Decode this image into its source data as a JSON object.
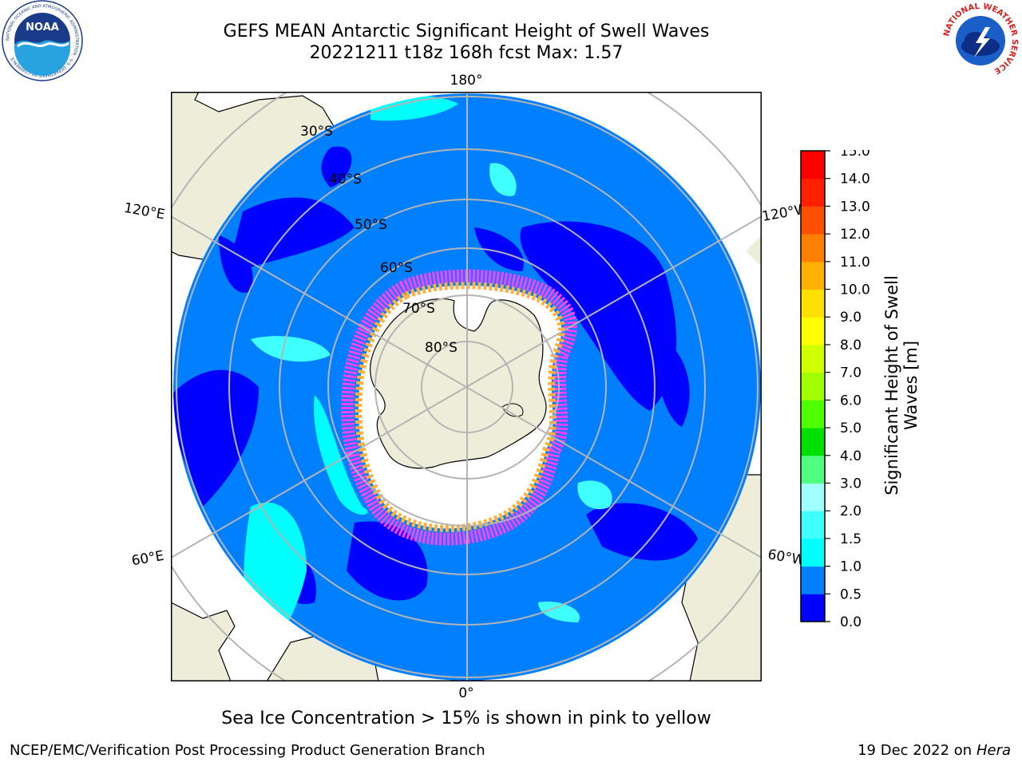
{
  "title": {
    "line1": "GEFS MEAN Antarctic Significant Height of Swell Waves",
    "line2": "20221211 t18z 168h fcst   Max: 1.57"
  },
  "caption": "Sea Ice Concentration > 15% is shown in pink to yellow",
  "footer": {
    "left": "NCEP/EMC/Verification Post Processing Product Generation Branch",
    "right_date": "19 Dec 2022 on",
    "right_host": "Hera"
  },
  "logos": {
    "noaa_text": "NOAA",
    "noaa_ring_text": "NATIONAL OCEANIC AND ATMOSPHERIC ADMINISTRATION · U.S. DEPARTMENT OF COMMERCE",
    "nws_ring_text": "NATIONAL WEATHER SERVICE"
  },
  "map": {
    "projection": "south-polar-stereographic",
    "lat_labels": [
      "30°S",
      "40°S",
      "50°S",
      "60°S",
      "70°S",
      "80°S"
    ],
    "lon_labels": {
      "top": "180°",
      "bottom": "0°",
      "left_upper": "120°E",
      "left_lower": "60°E",
      "right_upper": "120°W",
      "right_lower": "60°W"
    },
    "colors": {
      "land": "#eeedda",
      "ocean_low": "#0000ff",
      "ocean_mid": "#0080ff",
      "ocean_high": "#00ffff",
      "grid": "#b4b4b4"
    }
  },
  "colorbar": {
    "label_line1": "Significant Height of Swell",
    "label_line2": "Waves [m]",
    "ticks": [
      "0.0",
      "0.5",
      "1.0",
      "1.5",
      "2.0",
      "3.0",
      "4.0",
      "5.0",
      "6.0",
      "7.0",
      "8.0",
      "9.0",
      "10.0",
      "11.0",
      "12.0",
      "13.0",
      "14.0",
      "15.0"
    ],
    "colors": [
      "#0000ff",
      "#0080ff",
      "#00ffff",
      "#40ffff",
      "#a0ffff",
      "#50ff80",
      "#00e000",
      "#50ff00",
      "#a0ff00",
      "#d0ff00",
      "#ffff00",
      "#ffe000",
      "#ffb000",
      "#ff8000",
      "#ff5000",
      "#ff2000",
      "#ff0000"
    ]
  }
}
